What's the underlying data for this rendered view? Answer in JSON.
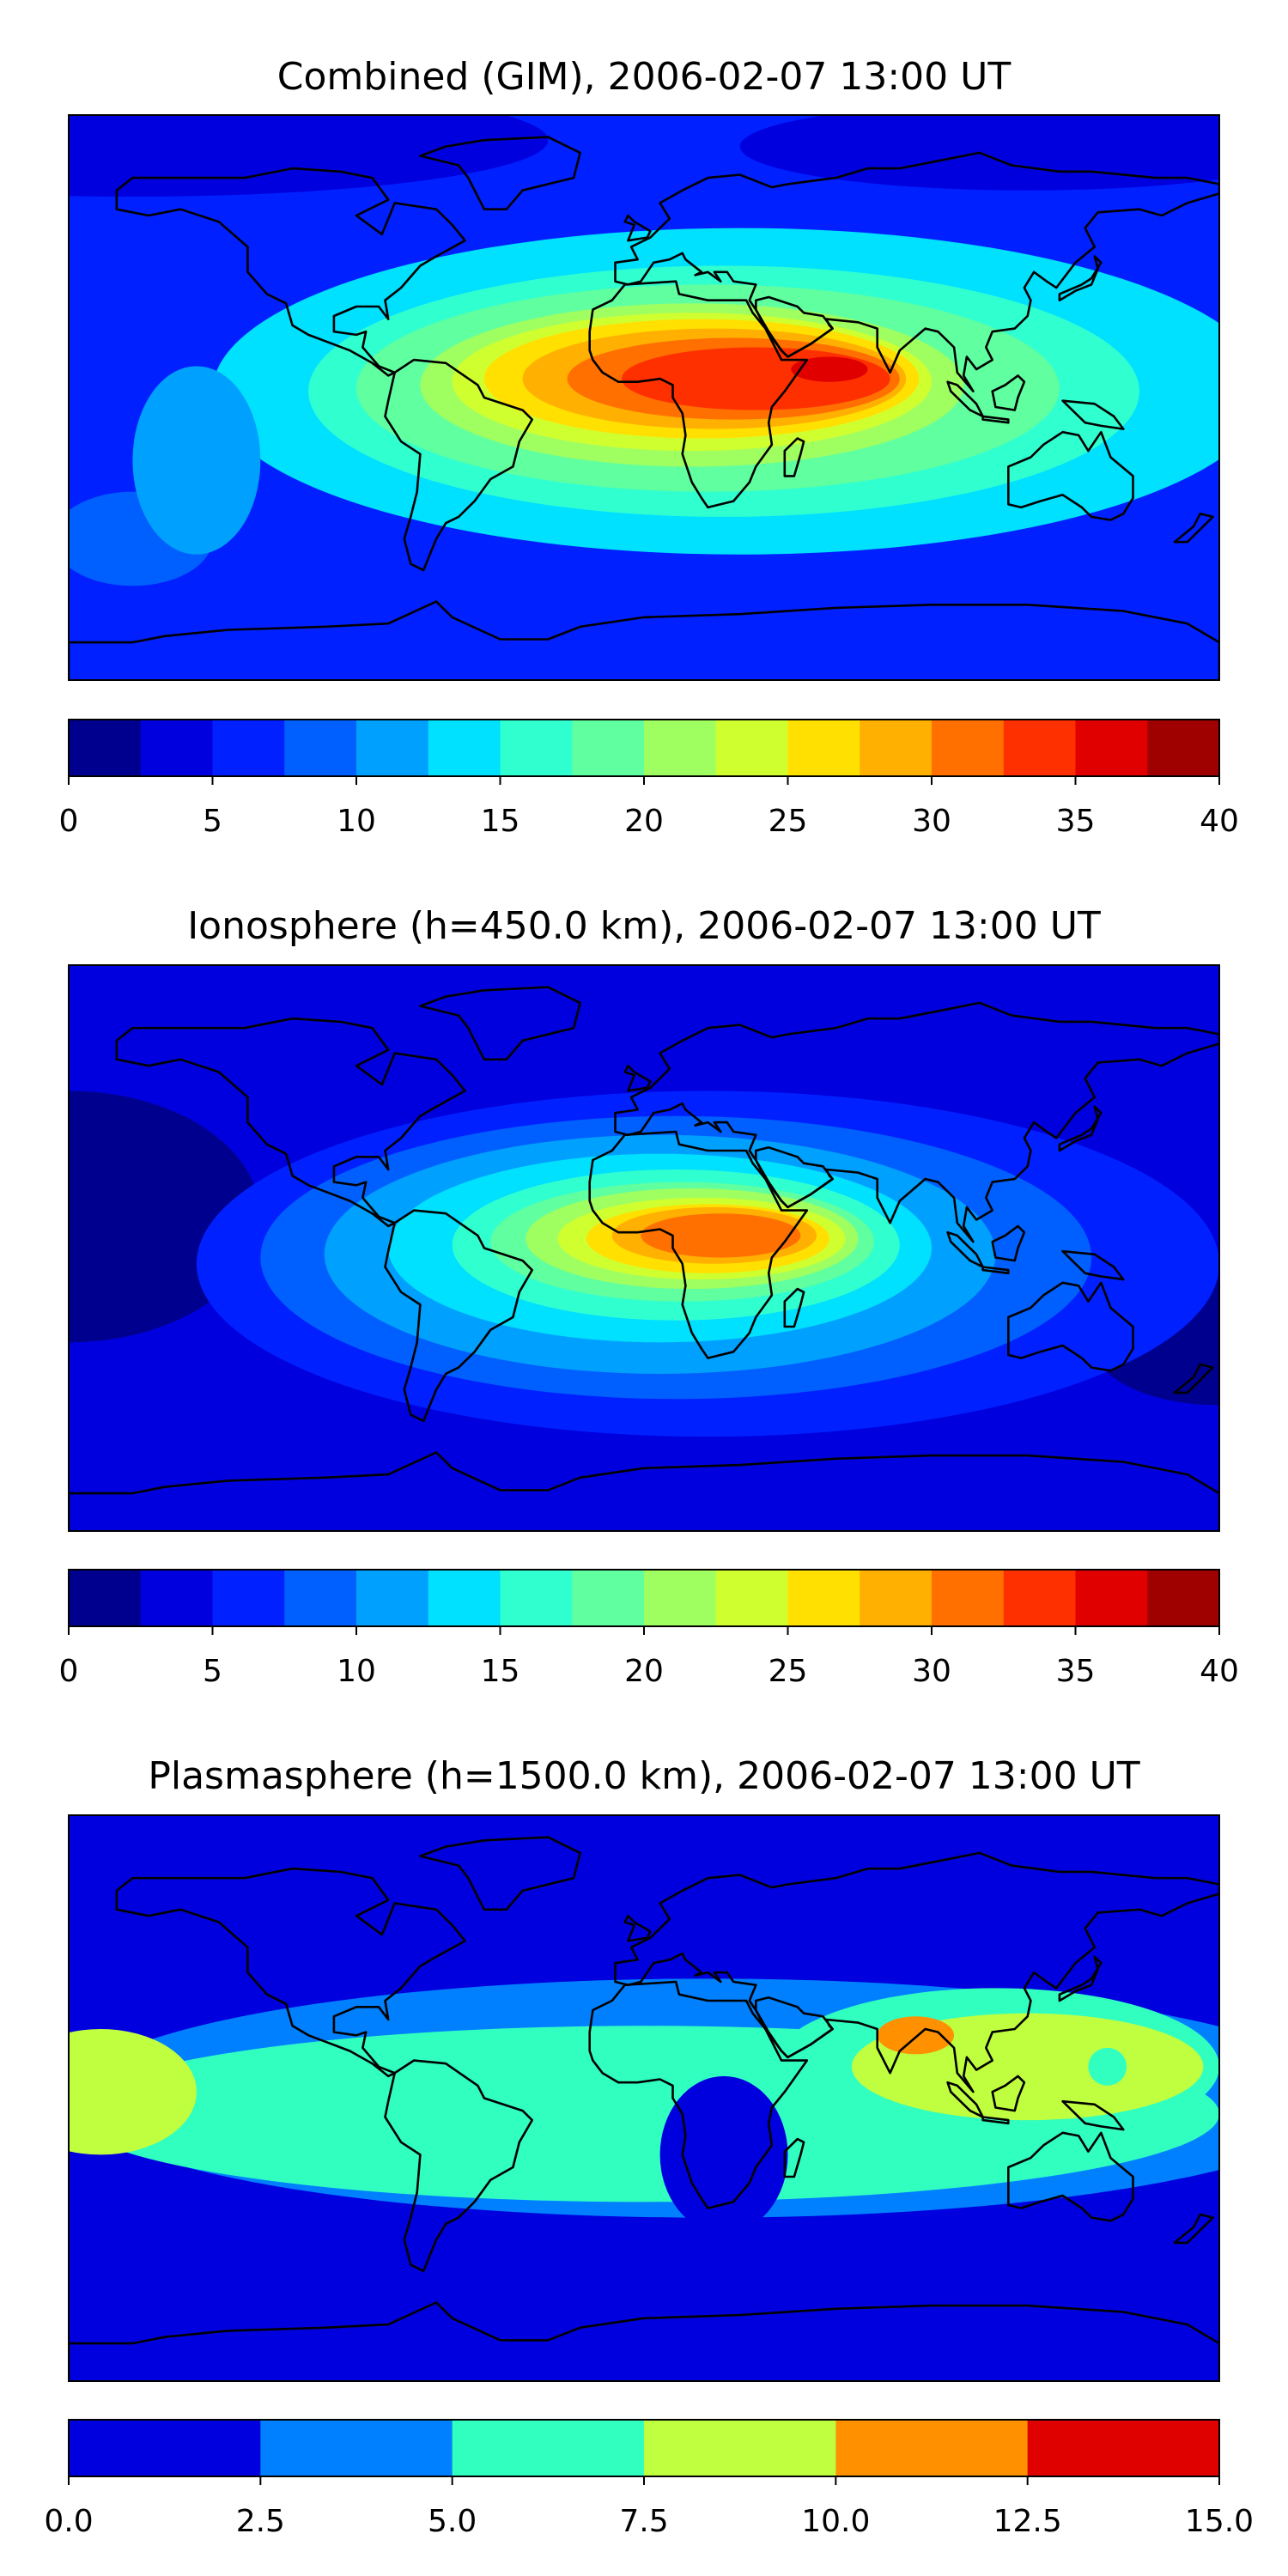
{
  "chart_data": [
    {
      "type": "heatmap",
      "title": "Combined (GIM), 2006-02-07 13:00 UT",
      "colorbar": {
        "levels": [
          0,
          2.5,
          5,
          7.5,
          10,
          12.5,
          15,
          17.5,
          20,
          22.5,
          25,
          27.5,
          30,
          32.5,
          35,
          37.5,
          40
        ],
        "ticks": [
          0,
          5,
          10,
          15,
          20,
          25,
          30,
          35,
          40
        ],
        "tick_labels": [
          "0",
          "5",
          "10",
          "15",
          "20",
          "25",
          "30",
          "35",
          "40"
        ],
        "colors": [
          "#00008f",
          "#0000df",
          "#0020ff",
          "#0060ff",
          "#00a0ff",
          "#00e0ff",
          "#30ffd0",
          "#60ff9f",
          "#a0ff60",
          "#d0ff30",
          "#ffe000",
          "#ffb000",
          "#ff7000",
          "#ff3000",
          "#e00000",
          "#9f0000"
        ]
      },
      "background_level": 2,
      "blobs": [
        {
          "lon": -160,
          "lat": 82,
          "rx": 130,
          "ry": 18,
          "level": 1
        },
        {
          "lon": 120,
          "lat": 80,
          "rx": 90,
          "ry": 14,
          "level": 1
        },
        {
          "lon": 30,
          "lat": 2,
          "rx": 165,
          "ry": 52,
          "level": 5
        },
        {
          "lon": 25,
          "lat": 2,
          "rx": 130,
          "ry": 40,
          "level": 6
        },
        {
          "lon": 20,
          "lat": 3,
          "rx": 110,
          "ry": 33,
          "level": 7
        },
        {
          "lon": 15,
          "lat": 4,
          "rx": 85,
          "ry": 26,
          "level": 8
        },
        {
          "lon": 15,
          "lat": 5,
          "rx": 75,
          "ry": 22,
          "level": 9
        },
        {
          "lon": 18,
          "lat": 6,
          "rx": 68,
          "ry": 19,
          "level": 10
        },
        {
          "lon": 22,
          "lat": 6,
          "rx": 60,
          "ry": 16,
          "level": 11
        },
        {
          "lon": 28,
          "lat": 6,
          "rx": 52,
          "ry": 13,
          "level": 12
        },
        {
          "lon": 35,
          "lat": 6,
          "rx": 42,
          "ry": 10,
          "level": 13
        },
        {
          "lon": 58,
          "lat": 9,
          "rx": 12,
          "ry": 4,
          "level": 14
        },
        {
          "lon": -160,
          "lat": -45,
          "rx": 25,
          "ry": 15,
          "level": 3
        },
        {
          "lon": -140,
          "lat": -20,
          "rx": 20,
          "ry": 30,
          "level": 4
        }
      ]
    },
    {
      "type": "heatmap",
      "title": "Ionosphere  (h=450.0 km), 2006-02-07 13:00 UT",
      "colorbar": {
        "levels": [
          0,
          2.5,
          5,
          7.5,
          10,
          12.5,
          15,
          17.5,
          20,
          22.5,
          25,
          27.5,
          30,
          32.5,
          35,
          37.5,
          40
        ],
        "ticks": [
          0,
          5,
          10,
          15,
          20,
          25,
          30,
          35,
          40
        ],
        "tick_labels": [
          "0",
          "5",
          "10",
          "15",
          "20",
          "25",
          "30",
          "35",
          "40"
        ],
        "colors": [
          "#00008f",
          "#0000df",
          "#0020ff",
          "#0060ff",
          "#00a0ff",
          "#00e0ff",
          "#30ffd0",
          "#60ff9f",
          "#a0ff60",
          "#d0ff30",
          "#ffe000",
          "#ffb000",
          "#ff7000",
          "#ff3000",
          "#e00000",
          "#9f0000"
        ]
      },
      "background_level": 1,
      "blobs": [
        {
          "lon": -180,
          "lat": 10,
          "rx": 60,
          "ry": 40,
          "level": 0
        },
        {
          "lon": 180,
          "lat": -30,
          "rx": 40,
          "ry": 20,
          "level": 0
        },
        {
          "lon": 20,
          "lat": -5,
          "rx": 160,
          "ry": 55,
          "level": 2
        },
        {
          "lon": 10,
          "lat": -3,
          "rx": 130,
          "ry": 45,
          "level": 3
        },
        {
          "lon": 5,
          "lat": -2,
          "rx": 105,
          "ry": 38,
          "level": 4
        },
        {
          "lon": 5,
          "lat": 0,
          "rx": 85,
          "ry": 30,
          "level": 5
        },
        {
          "lon": 10,
          "lat": 1,
          "rx": 70,
          "ry": 24,
          "level": 6
        },
        {
          "lon": 12,
          "lat": 2,
          "rx": 60,
          "ry": 19,
          "level": 7
        },
        {
          "lon": 15,
          "lat": 3,
          "rx": 52,
          "ry": 16,
          "level": 8
        },
        {
          "lon": 18,
          "lat": 3,
          "rx": 45,
          "ry": 13,
          "level": 9
        },
        {
          "lon": 20,
          "lat": 3,
          "rx": 38,
          "ry": 11,
          "level": 10
        },
        {
          "lon": 22,
          "lat": 4,
          "rx": 32,
          "ry": 9,
          "level": 11
        },
        {
          "lon": 24,
          "lat": 4,
          "rx": 25,
          "ry": 7,
          "level": 12
        }
      ]
    },
    {
      "type": "heatmap",
      "title": "Plasmasphere (h=1500.0 km), 2006-02-07 13:00 UT",
      "colorbar": {
        "levels": [
          0.0,
          2.5,
          5.0,
          7.5,
          10.0,
          12.5,
          15.0
        ],
        "ticks": [
          0.0,
          2.5,
          5.0,
          7.5,
          10.0,
          12.5,
          15.0
        ],
        "tick_labels": [
          "0.0",
          "2.5",
          "5.0",
          "7.5",
          "10.0",
          "12.5",
          "15.0"
        ],
        "colors": [
          "#0000df",
          "#0080ff",
          "#30ffc0",
          "#c0ff40",
          "#ff9000",
          "#df0000"
        ]
      },
      "background_level": 0,
      "blobs": [
        {
          "lon": 20,
          "lat": 0,
          "rx": 200,
          "ry": 38,
          "level": 1
        },
        {
          "lon": 0,
          "lat": -5,
          "rx": 180,
          "ry": 28,
          "level": 2
        },
        {
          "lon": 110,
          "lat": 10,
          "rx": 70,
          "ry": 25,
          "level": 2
        },
        {
          "lon": -170,
          "lat": 2,
          "rx": 30,
          "ry": 20,
          "level": 3
        },
        {
          "lon": 120,
          "lat": 10,
          "rx": 55,
          "ry": 17,
          "level": 3
        },
        {
          "lon": 85,
          "lat": 20,
          "rx": 12,
          "ry": 6,
          "level": 4
        },
        {
          "lon": 25,
          "lat": -18,
          "rx": 20,
          "ry": 25,
          "level": 0
        },
        {
          "lon": 145,
          "lat": 10,
          "rx": 6,
          "ry": 6,
          "level": 2
        }
      ]
    }
  ]
}
